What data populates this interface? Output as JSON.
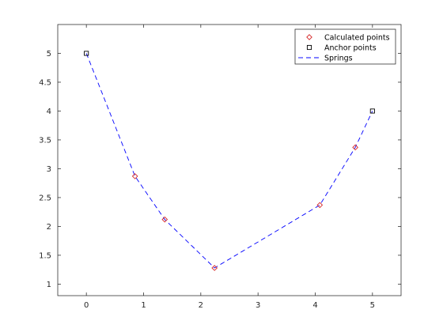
{
  "chart_data": {
    "type": "line",
    "title": "",
    "xlabel": "",
    "ylabel": "",
    "xlim": [
      -0.5,
      5.5
    ],
    "ylim": [
      0.8,
      5.5
    ],
    "xticks": [
      0,
      1,
      2,
      3,
      4,
      5
    ],
    "yticks": [
      1,
      1.5,
      2,
      2.5,
      3,
      3.5,
      4,
      4.5,
      5
    ],
    "grid": false,
    "legend_position": "top-right",
    "series": [
      {
        "name": "Calculated points",
        "kind": "marker",
        "marker": "diamond",
        "color": "#d62728",
        "x": [
          0.85,
          1.37,
          2.24,
          4.08,
          4.7
        ],
        "y": [
          2.87,
          2.12,
          1.28,
          2.37,
          3.37
        ]
      },
      {
        "name": "Anchor points",
        "kind": "marker",
        "marker": "square",
        "color": "#000000",
        "x": [
          0,
          5
        ],
        "y": [
          5,
          4
        ]
      },
      {
        "name": "Springs",
        "kind": "line",
        "line_style": "dashed",
        "color": "#0000ff",
        "x": [
          0,
          0.85,
          1.37,
          2.24,
          4.08,
          4.7,
          5
        ],
        "y": [
          5,
          2.87,
          2.12,
          1.28,
          2.37,
          3.37,
          4
        ]
      }
    ]
  }
}
